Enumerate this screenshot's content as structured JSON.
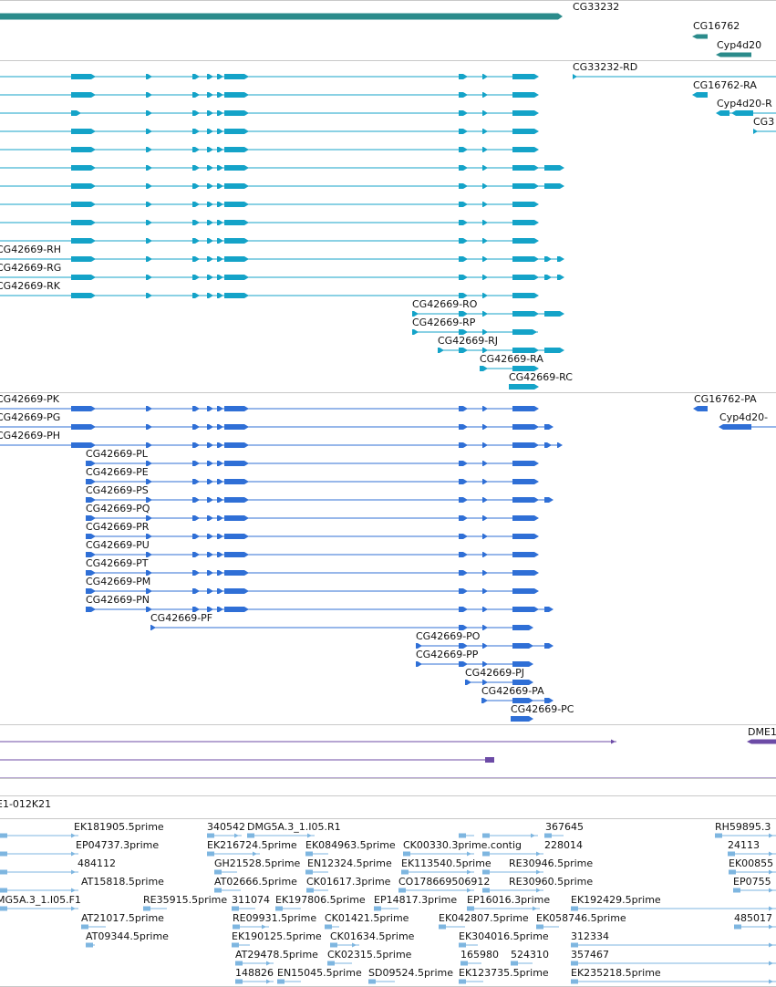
{
  "colors": {
    "gene": "#2b8b8b",
    "transcript_a": "#14a3c8",
    "transcript_b": "#2f6fd6",
    "purple": "#6c4ba6",
    "est": "#7eb6e0",
    "separator": "#c8c8c8"
  },
  "genes_track": {
    "labels": [
      "CG33232",
      "CG16762",
      "Cyp4d20"
    ]
  },
  "transcripts_a": {
    "labels": [
      "CG33232-RD",
      "CG16762-RA",
      "Cyp4d20-R",
      "CG3",
      "CG42669-RH",
      "CG42669-RG",
      "CG42669-RK",
      "CG42669-RO",
      "CG42669-RP",
      "CG42669-RJ",
      "CG42669-RA",
      "CG42669-RC"
    ]
  },
  "transcripts_b": {
    "labels": [
      "CG42669-PK",
      "CG42669-PG",
      "CG42669-PH",
      "CG16762-PA",
      "Cyp4d20-",
      "CG42669-PL",
      "CG42669-PE",
      "CG42669-PS",
      "CG42669-PQ",
      "CG42669-PR",
      "CG42669-PU",
      "CG42669-PT",
      "CG42669-PM",
      "CG42669-PN",
      "CG42669-PF",
      "CG42669-PO",
      "CG42669-PP",
      "CG42669-PJ",
      "CG42669-PA",
      "CG42669-PC"
    ]
  },
  "misc_track": {
    "labels": [
      "DME1",
      "E1-012K21"
    ]
  },
  "est_track": {
    "labels": [
      "EK181905.5prime",
      "340542",
      "DMG5A.3_1.I05.R1",
      "367645",
      "RH59895.3",
      "EP04737.3prime",
      "EK216724.5prime",
      "EK084963.5prime",
      "CK00330.3prime.contig",
      "228014",
      "24113",
      "484112",
      "GH21528.5prime",
      "EN12324.5prime",
      "EK113540.5prime",
      "RE30946.5prime",
      "EK00855",
      "AT15818.5prime",
      "AT02666.5prime",
      "CK01617.3prime",
      "CO178669506912",
      "RE30960.5prime",
      "EP0755",
      "MG5A.3_1.I05.F1",
      "RE35915.5prime",
      "311074",
      "EK197806.5prime",
      "EP14817.3prime",
      "EP16016.3prime",
      "EK192429.5prime",
      "AT21017.5prime",
      "RE09931.5prime",
      "CK01421.5prime",
      "EK042807.5prime",
      "EK058746.5prime",
      "485017",
      "AT09344.5prime",
      "EK190125.5prime",
      "CK01634.5prime",
      "EK304016.5prime",
      "312334",
      "AT29478.5prime",
      "CK02315.5prime",
      "165980",
      "524310",
      "357467",
      "148826",
      "EN15045.5prime",
      "SD09524.5prime",
      "EK123735.5prime",
      "EK235218.5prime"
    ]
  }
}
